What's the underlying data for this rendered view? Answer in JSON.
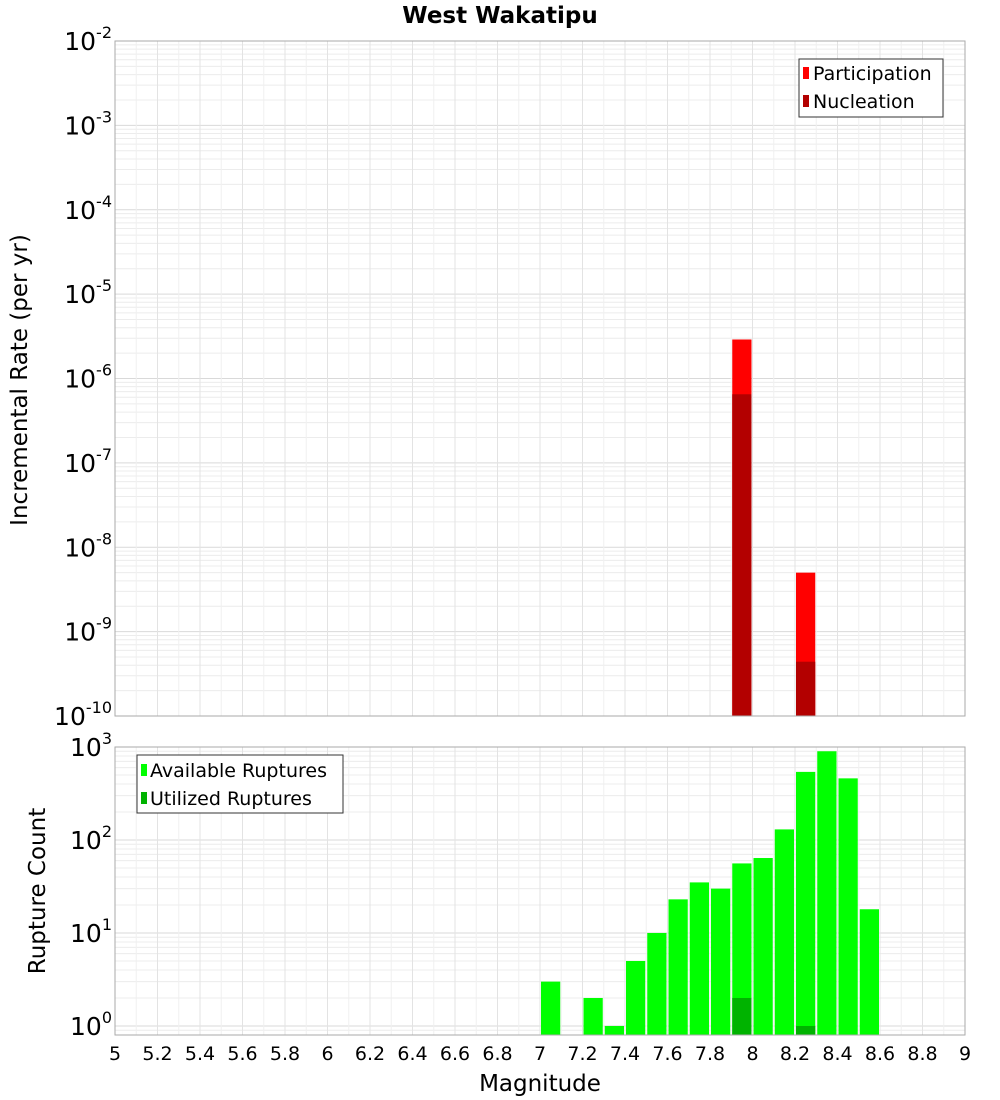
{
  "chart_data": [
    {
      "type": "bar",
      "title": "West Wakatipu",
      "xlabel": "Magnitude",
      "ylabel": "Incremental Rate (per yr)",
      "yscale": "log",
      "ylim": [
        1e-10,
        0.01
      ],
      "xlim": [
        5,
        9
      ],
      "grid": true,
      "legend_position": "top-right",
      "y_tick_labels": [
        "10-10",
        "10-9",
        "10-8",
        "10-7",
        "10-6",
        "10-5",
        "10-4",
        "10-3",
        "10-2"
      ],
      "series": [
        {
          "name": "Participation",
          "color": "#ff0000",
          "x": [
            7.95,
            8.25
          ],
          "values": [
            2.9e-06,
            5e-09
          ]
        },
        {
          "name": "Nucleation",
          "color": "#b30000",
          "x": [
            7.95,
            8.25
          ],
          "values": [
            6.5e-07,
            4.4e-10
          ]
        }
      ]
    },
    {
      "type": "bar",
      "xlabel": "Magnitude",
      "ylabel": "Rupture Count",
      "yscale": "log",
      "ylim": [
        0.8,
        1000
      ],
      "xlim": [
        5,
        9
      ],
      "grid": true,
      "legend_position": "top-left",
      "y_tick_labels": [
        "100",
        "101",
        "102",
        "103"
      ],
      "x_tick_labels": [
        "5",
        "5.2",
        "5.4",
        "5.6",
        "5.8",
        "6",
        "6.2",
        "6.4",
        "6.6",
        "6.8",
        "7",
        "7.2",
        "7.4",
        "7.6",
        "7.8",
        "8",
        "8.2",
        "8.4",
        "8.6",
        "8.8",
        "9"
      ],
      "series": [
        {
          "name": "Available Ruptures",
          "color": "#00ff00",
          "x": [
            7.05,
            7.25,
            7.35,
            7.45,
            7.55,
            7.65,
            7.75,
            7.85,
            7.95,
            8.05,
            8.15,
            8.25,
            8.35,
            8.45,
            8.55
          ],
          "values": [
            3,
            2,
            1,
            5,
            10,
            23,
            35,
            30,
            56,
            64,
            130,
            540,
            900,
            460,
            18
          ]
        },
        {
          "name": "Utilized Ruptures",
          "color": "#00b300",
          "x": [
            7.95,
            8.25
          ],
          "values": [
            2,
            1
          ]
        }
      ]
    }
  ]
}
